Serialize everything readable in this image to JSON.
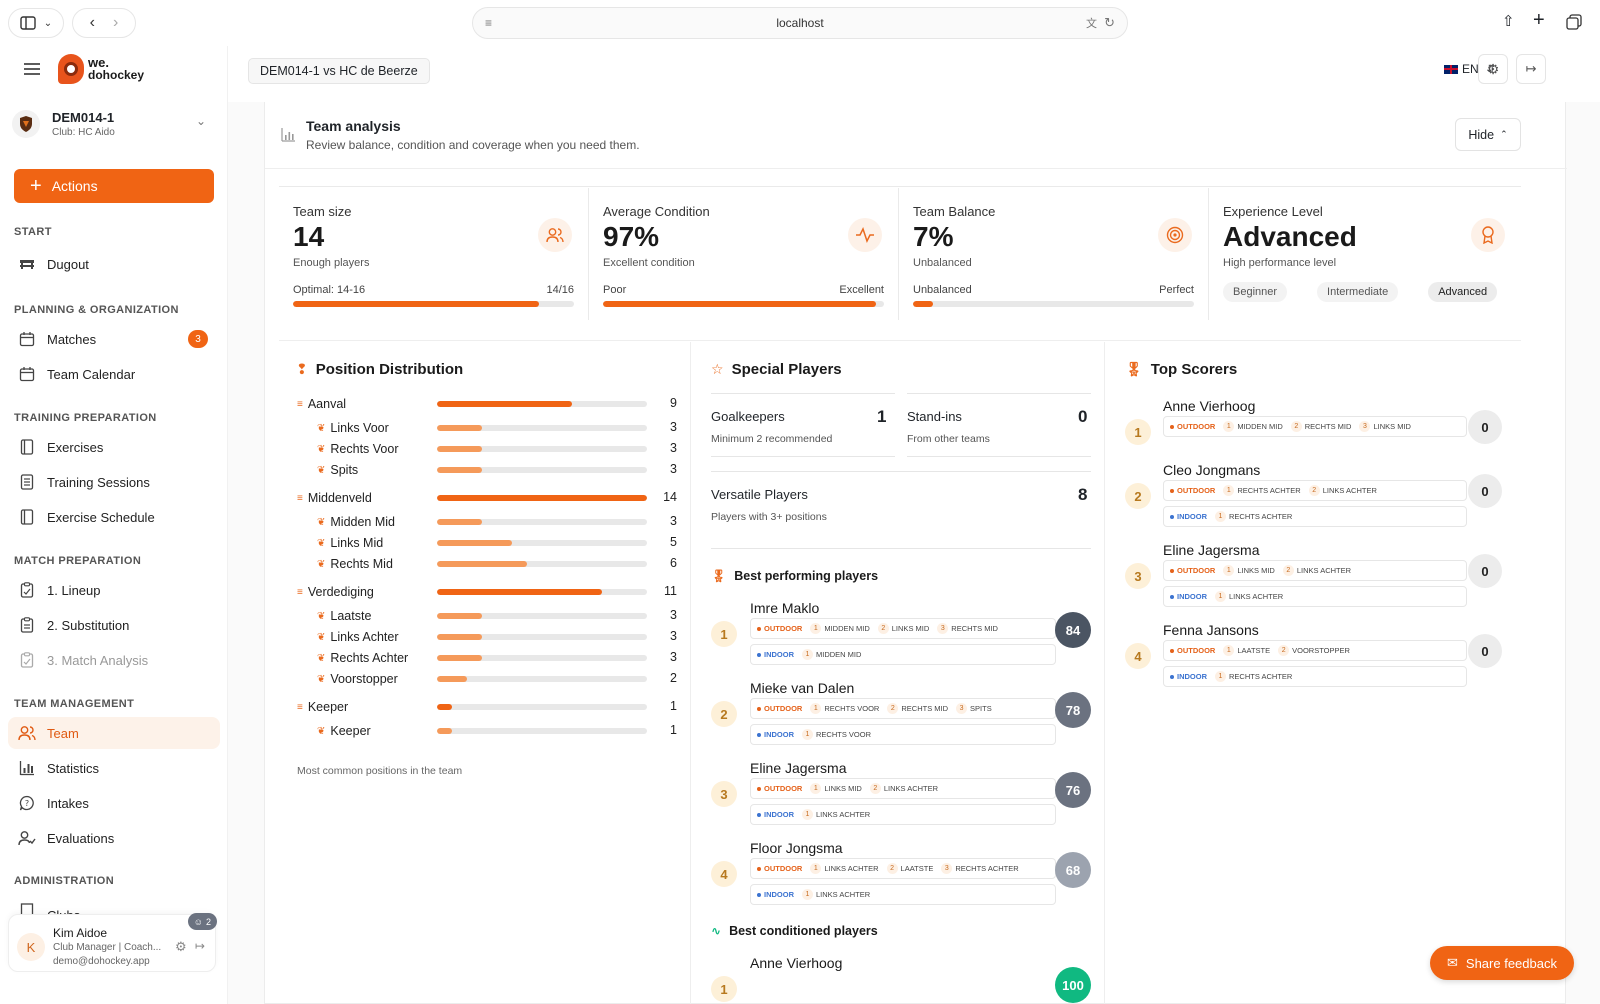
{
  "browser": {
    "url": "localhost"
  },
  "sidebar": {
    "logo_line1": "we.",
    "logo_line2": "dohockey",
    "team_name": "DEM014-1",
    "team_club": "Club: HC Aido",
    "actions_label": "Actions",
    "sections": {
      "start": "START",
      "planning": "PLANNING & ORGANIZATION",
      "training": "TRAINING PREPARATION",
      "match": "MATCH PREPARATION",
      "team": "TEAM MANAGEMENT",
      "admin": "ADMINISTRATION"
    },
    "items": {
      "dugout": "Dugout",
      "matches": "Matches",
      "matches_badge": "3",
      "calendar": "Team Calendar",
      "exercises": "Exercises",
      "sessions": "Training Sessions",
      "schedule": "Exercise Schedule",
      "lineup": "1. Lineup",
      "substitution": "2. Substitution",
      "analysis": "3. Match Analysis",
      "team": "Team",
      "statistics": "Statistics",
      "intakes": "Intakes",
      "evaluations": "Evaluations",
      "clubs": "Clubs"
    },
    "user": {
      "initial": "K",
      "name": "Kim Aidoe",
      "role": "Club Manager | Coach...",
      "email": "demo@dohockey.app",
      "badge": "2"
    }
  },
  "header": {
    "breadcrumb": "DEM014-1 vs HC de Beerze",
    "language": "EN"
  },
  "analysis": {
    "title": "Team analysis",
    "subtitle": "Review balance, condition and coverage when you need them.",
    "hide_label": "Hide",
    "stats": {
      "size": {
        "label": "Team size",
        "value": "14",
        "sub": "Enough players",
        "left": "Optimal: 14-16",
        "right": "14/16",
        "fill": 0.875
      },
      "condition": {
        "label": "Average Condition",
        "value": "97%",
        "sub": "Excellent condition",
        "left": "Poor",
        "right": "Excellent",
        "fill": 0.97
      },
      "balance": {
        "label": "Team Balance",
        "value": "7%",
        "sub": "Unbalanced",
        "left": "Unbalanced",
        "right": "Perfect",
        "fill": 0.07
      },
      "experience": {
        "label": "Experience Level",
        "value": "Advanced",
        "sub": "High performance level",
        "levels": [
          "Beginner",
          "Intermediate",
          "Advanced"
        ],
        "selected": "Advanced"
      }
    }
  },
  "positions": {
    "title": "Position Distribution",
    "footer": "Most common positions in the team",
    "max": 14,
    "groups": [
      {
        "name": "Aanval",
        "value": 9,
        "display": "9",
        "items": [
          {
            "name": "Links Voor",
            "value": 3,
            "display": "3"
          },
          {
            "name": "Rechts Voor",
            "value": 3,
            "display": "3"
          },
          {
            "name": "Spits",
            "value": 3,
            "display": "3"
          }
        ]
      },
      {
        "name": "Middenveld",
        "value": 14,
        "display": "14",
        "items": [
          {
            "name": "Midden Mid",
            "value": 3,
            "display": "3"
          },
          {
            "name": "Links Mid",
            "value": 5,
            "display": "5"
          },
          {
            "name": "Rechts Mid",
            "value": 6,
            "display": "6"
          }
        ]
      },
      {
        "name": "Verdediging",
        "value": 11,
        "display": "11",
        "items": [
          {
            "name": "Laatste",
            "value": 3,
            "display": "3"
          },
          {
            "name": "Links Achter",
            "value": 3,
            "display": "3"
          },
          {
            "name": "Rechts Achter",
            "value": 3,
            "display": "3"
          },
          {
            "name": "Voorstopper",
            "value": 2,
            "display": "2"
          }
        ]
      },
      {
        "name": "Keeper",
        "value": 1,
        "display": "1",
        "items": [
          {
            "name": "Keeper",
            "value": 1,
            "display": "1"
          }
        ]
      }
    ]
  },
  "special": {
    "title": "Special Players",
    "goalkeepers": {
      "label": "Goalkeepers",
      "value": "1",
      "sub": "Minimum 2 recommended"
    },
    "standins": {
      "label": "Stand-ins",
      "value": "0",
      "sub": "From other teams"
    },
    "versatile": {
      "label": "Versatile Players",
      "value": "8",
      "sub": "Players with 3+ positions"
    },
    "best_title": "Best performing players",
    "conditioned_title": "Best conditioned players",
    "best": [
      {
        "rank": "1",
        "name": "Imre Maklo",
        "score": "84",
        "outdoor": [
          "MIDDEN MID",
          "LINKS MID",
          "RECHTS MID"
        ],
        "indoor": [
          "MIDDEN MID"
        ]
      },
      {
        "rank": "2",
        "name": "Mieke van Dalen",
        "score": "78",
        "outdoor": [
          "RECHTS VOOR",
          "RECHTS MID",
          "SPITS"
        ],
        "indoor": [
          "RECHTS VOOR"
        ]
      },
      {
        "rank": "3",
        "name": "Eline Jagersma",
        "score": "76",
        "outdoor": [
          "LINKS MID",
          "LINKS ACHTER"
        ],
        "indoor": [
          "LINKS ACHTER"
        ]
      },
      {
        "rank": "4",
        "name": "Floor Jongsma",
        "score": "68",
        "outdoor": [
          "LINKS ACHTER",
          "LAATSTE",
          "RECHTS ACHTER"
        ],
        "indoor": [
          "LINKS ACHTER"
        ]
      }
    ],
    "conditioned": [
      {
        "rank": "1",
        "name": "Anne Vierhoog",
        "score": "100"
      }
    ]
  },
  "scorers": {
    "title": "Top Scorers",
    "outdoor_label": "OUTDOOR",
    "indoor_label": "INDOOR",
    "items": [
      {
        "rank": "1",
        "name": "Anne Vierhoog",
        "score": "0",
        "outdoor": [
          "MIDDEN MID",
          "RECHTS MID",
          "LINKS MID"
        ],
        "indoor": []
      },
      {
        "rank": "2",
        "name": "Cleo Jongmans",
        "score": "0",
        "outdoor": [
          "RECHTS ACHTER",
          "LINKS ACHTER"
        ],
        "indoor": [
          "RECHTS ACHTER"
        ]
      },
      {
        "rank": "3",
        "name": "Eline Jagersma",
        "score": "0",
        "outdoor": [
          "LINKS MID",
          "LINKS ACHTER"
        ],
        "indoor": [
          "LINKS ACHTER"
        ]
      },
      {
        "rank": "4",
        "name": "Fenna Jansons",
        "score": "0",
        "outdoor": [
          "LAATSTE",
          "VOORSTOPPER"
        ],
        "indoor": [
          "RECHTS ACHTER"
        ]
      }
    ]
  },
  "feedback_label": "Share feedback",
  "colors": {
    "accent": "#f06414",
    "accent_light": "#f59a5a",
    "score_dark": "#4b5563",
    "score_mid": "#6b7280",
    "score_light": "#9ca3af",
    "score_green": "#10b981"
  }
}
